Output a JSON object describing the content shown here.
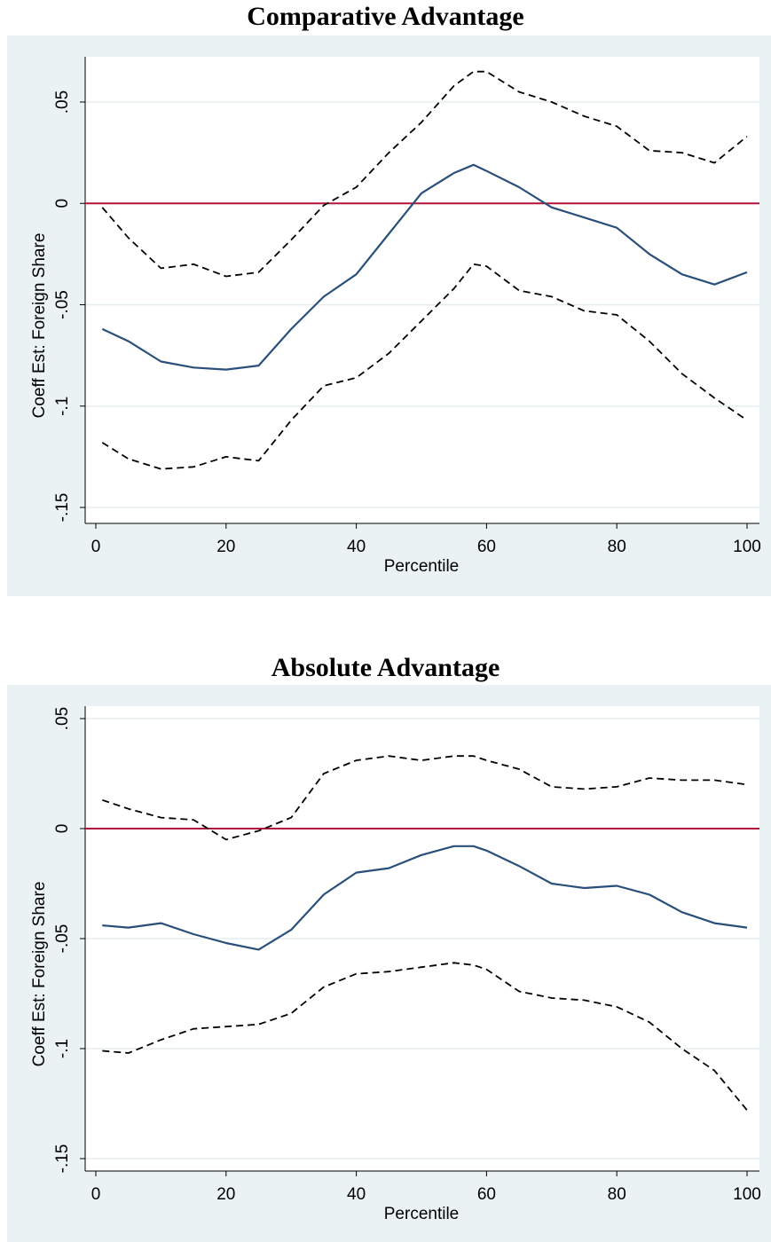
{
  "chart_data": [
    {
      "type": "line",
      "title": "Comparative Advantage",
      "xlabel": "Percentile",
      "ylabel": "Coeff Est: Foreign Share",
      "xlim": [
        0,
        100
      ],
      "ylim": [
        -0.15,
        0.05
      ],
      "xticks": [
        0,
        20,
        40,
        60,
        80,
        100
      ],
      "xtick_labels": [
        "0",
        "20",
        "40",
        "60",
        "80",
        "100"
      ],
      "yticks": [
        -0.15,
        -0.1,
        -0.05,
        0,
        0.05
      ],
      "ytick_labels": [
        "-.15",
        "-.1",
        "-.05",
        "0",
        ".05"
      ],
      "grid": true,
      "reference_line": {
        "y": 0,
        "color": "#b5123a"
      },
      "x": [
        1,
        5,
        10,
        15,
        20,
        25,
        30,
        35,
        40,
        45,
        50,
        55,
        58,
        60,
        65,
        70,
        75,
        80,
        85,
        90,
        95,
        100
      ],
      "series": [
        {
          "role": "estimate",
          "style": "solid",
          "color": "#2a4f7a",
          "values": [
            -0.062,
            -0.068,
            -0.078,
            -0.081,
            -0.082,
            -0.08,
            -0.062,
            -0.046,
            -0.035,
            -0.015,
            0.005,
            0.015,
            0.019,
            0.016,
            0.008,
            -0.002,
            -0.007,
            -0.012,
            -0.025,
            -0.035,
            -0.04,
            -0.034
          ]
        },
        {
          "role": "upper-ci",
          "style": "dashed",
          "color": "#000000",
          "values": [
            -0.002,
            -0.017,
            -0.032,
            -0.03,
            -0.036,
            -0.034,
            -0.018,
            -0.001,
            0.008,
            0.025,
            0.04,
            0.058,
            0.065,
            0.065,
            0.055,
            0.05,
            0.043,
            0.038,
            0.026,
            0.025,
            0.02,
            0.033
          ]
        },
        {
          "role": "lower-ci",
          "style": "dashed",
          "color": "#000000",
          "values": [
            -0.118,
            -0.126,
            -0.131,
            -0.13,
            -0.125,
            -0.127,
            -0.107,
            -0.09,
            -0.086,
            -0.074,
            -0.058,
            -0.042,
            -0.03,
            -0.031,
            -0.043,
            -0.046,
            -0.053,
            -0.055,
            -0.068,
            -0.084,
            -0.096,
            -0.107
          ]
        }
      ]
    },
    {
      "type": "line",
      "title": "Absolute Advantage",
      "xlabel": "Percentile",
      "ylabel": "Coeff Est: Foreign Share",
      "xlim": [
        0,
        100
      ],
      "ylim": [
        -0.15,
        0.05
      ],
      "xticks": [
        0,
        20,
        40,
        60,
        80,
        100
      ],
      "xtick_labels": [
        "0",
        "20",
        "40",
        "60",
        "80",
        "100"
      ],
      "yticks": [
        -0.15,
        -0.1,
        -0.05,
        0,
        0.05
      ],
      "ytick_labels": [
        "-.15",
        "-.1",
        "-.05",
        "0",
        ".05"
      ],
      "grid": true,
      "reference_line": {
        "y": 0,
        "color": "#b5123a"
      },
      "x": [
        1,
        5,
        10,
        15,
        20,
        25,
        30,
        35,
        40,
        45,
        50,
        55,
        58,
        60,
        65,
        70,
        75,
        80,
        85,
        90,
        95,
        100
      ],
      "series": [
        {
          "role": "estimate",
          "style": "solid",
          "color": "#2a4f7a",
          "values": [
            -0.044,
            -0.045,
            -0.043,
            -0.048,
            -0.052,
            -0.055,
            -0.046,
            -0.03,
            -0.02,
            -0.018,
            -0.012,
            -0.008,
            -0.008,
            -0.01,
            -0.017,
            -0.025,
            -0.027,
            -0.026,
            -0.03,
            -0.038,
            -0.043,
            -0.045
          ]
        },
        {
          "role": "upper-ci",
          "style": "dashed",
          "color": "#000000",
          "values": [
            0.013,
            0.009,
            0.005,
            0.004,
            -0.005,
            -0.001,
            0.005,
            0.025,
            0.031,
            0.033,
            0.031,
            0.033,
            0.033,
            0.031,
            0.027,
            0.019,
            0.018,
            0.019,
            0.023,
            0.022,
            0.022,
            0.02
          ]
        },
        {
          "role": "lower-ci",
          "style": "dashed",
          "color": "#000000",
          "values": [
            -0.101,
            -0.102,
            -0.096,
            -0.091,
            -0.09,
            -0.089,
            -0.084,
            -0.072,
            -0.066,
            -0.065,
            -0.063,
            -0.061,
            -0.062,
            -0.064,
            -0.074,
            -0.077,
            -0.078,
            -0.081,
            -0.088,
            -0.1,
            -0.11,
            -0.128
          ]
        }
      ]
    }
  ]
}
